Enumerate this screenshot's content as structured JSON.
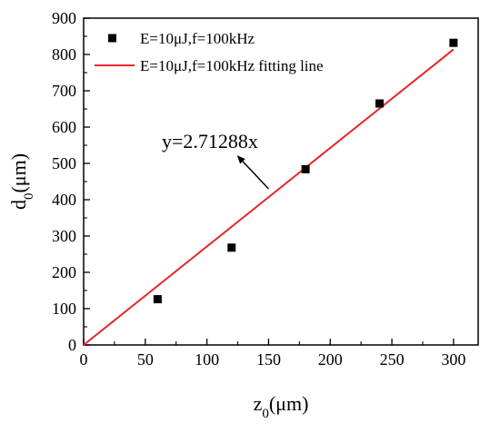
{
  "chart_data": {
    "type": "scatter",
    "xlabel": {
      "base": "z",
      "sub": "0",
      "unit": "(μm)"
    },
    "ylabel": {
      "base": "d",
      "sub": "0",
      "unit": "(μm)"
    },
    "xlim": [
      0,
      320
    ],
    "ylim": [
      0,
      900
    ],
    "xticks": [
      0,
      50,
      100,
      150,
      200,
      250,
      300
    ],
    "yticks": [
      0,
      100,
      200,
      300,
      400,
      500,
      600,
      700,
      800,
      900
    ],
    "grid": false,
    "legend_position": "top-left",
    "series": [
      {
        "name": "E=10μJ,f=100kHz",
        "kind": "scatter",
        "color": "#000000",
        "marker": "square",
        "x": [
          60,
          120,
          180,
          240,
          300
        ],
        "y": [
          126,
          268,
          484,
          665,
          832
        ]
      },
      {
        "name": "E=10μJ,f=100kHz fitting line",
        "kind": "line",
        "color": "#e8262b",
        "slope": 2.71288,
        "x": [
          0,
          300
        ]
      }
    ],
    "annotation": {
      "text": "y=2.71288x",
      "arrow_from": [
        150,
        430
      ],
      "arrow_to": [
        125,
        520
      ]
    }
  }
}
